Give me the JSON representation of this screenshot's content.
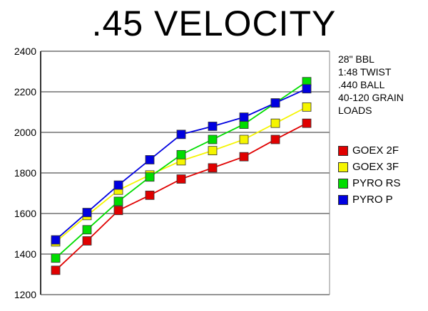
{
  "chart_data": {
    "type": "line",
    "title": ".45 VELOCITY",
    "x": [
      1,
      2,
      3,
      4,
      5,
      6,
      7,
      8,
      9
    ],
    "ylim": [
      1200,
      2400
    ],
    "yticks": [
      1200,
      1400,
      1600,
      1800,
      2000,
      2200,
      2400
    ],
    "grid": true,
    "legend_position": "right",
    "notes": [
      "28\" BBL",
      "1:48 TWIST",
      ".440 BALL",
      "40-120 GRAIN",
      "LOADS"
    ],
    "series": [
      {
        "name": "GOEX 2F",
        "color": "#e00000",
        "values": [
          1320,
          1465,
          1615,
          1690,
          1770,
          1825,
          1880,
          1965,
          2045
        ]
      },
      {
        "name": "GOEX 3F",
        "color": "#f5f500",
        "values": [
          1460,
          1590,
          1715,
          1790,
          1860,
          1910,
          1965,
          2045,
          2125
        ]
      },
      {
        "name": "PYRO RS",
        "color": "#00dd00",
        "values": [
          1380,
          1520,
          1660,
          1780,
          1890,
          1965,
          2040,
          2145,
          2250
        ]
      },
      {
        "name": "PYRO P",
        "color": "#0000e0",
        "values": [
          1470,
          1605,
          1740,
          1865,
          1990,
          2030,
          2075,
          2145,
          2215
        ]
      }
    ]
  }
}
